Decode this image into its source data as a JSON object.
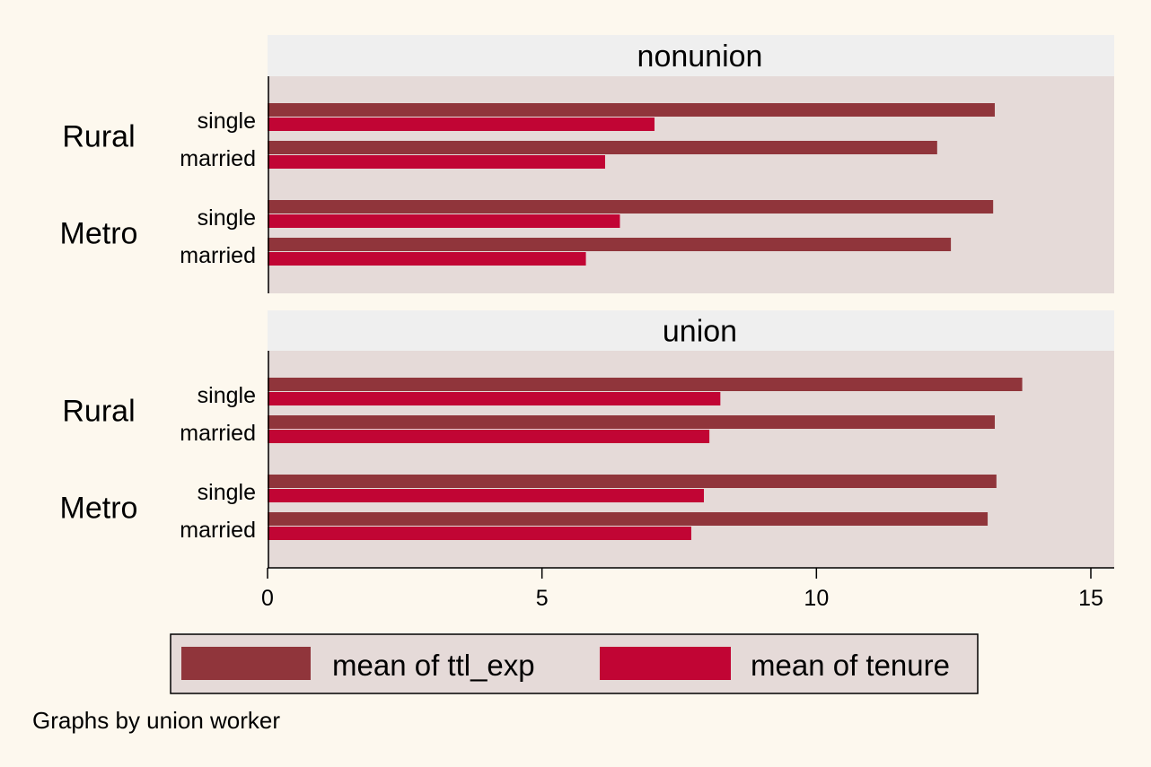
{
  "colors": {
    "background": "#fdf8ee",
    "plot_area": "#e5dad8",
    "strip": "#efefef",
    "ttl_exp": "#90353b",
    "tenure": "#c10534",
    "axis": "#000000"
  },
  "note": "Graphs by union worker",
  "chart_data": {
    "type": "bar",
    "orientation": "horizontal",
    "by": "union worker",
    "x_ticks": [
      0,
      5,
      10,
      15
    ],
    "xlim": [
      0,
      15.4
    ],
    "grid": false,
    "legend_position": "bottom",
    "legend": [
      "mean of ttl_exp",
      "mean of tenure"
    ],
    "series_keys": [
      "ttl_exp",
      "tenure"
    ],
    "panels": [
      {
        "title": "nonunion",
        "groups": [
          {
            "label": "Rural",
            "rows": [
              {
                "label": "single",
                "ttl_exp": 13.25,
                "tenure": 7.05
              },
              {
                "label": "married",
                "ttl_exp": 12.2,
                "tenure": 6.15
              }
            ]
          },
          {
            "label": "Metro",
            "rows": [
              {
                "label": "single",
                "ttl_exp": 13.22,
                "tenure": 6.42
              },
              {
                "label": "married",
                "ttl_exp": 12.45,
                "tenure": 5.8
              }
            ]
          }
        ]
      },
      {
        "title": "union",
        "groups": [
          {
            "label": "Rural",
            "rows": [
              {
                "label": "single",
                "ttl_exp": 13.75,
                "tenure": 8.25
              },
              {
                "label": "married",
                "ttl_exp": 13.25,
                "tenure": 8.05
              }
            ]
          },
          {
            "label": "Metro",
            "rows": [
              {
                "label": "single",
                "ttl_exp": 13.28,
                "tenure": 7.95
              },
              {
                "label": "married",
                "ttl_exp": 13.12,
                "tenure": 7.72
              }
            ]
          }
        ]
      }
    ]
  }
}
